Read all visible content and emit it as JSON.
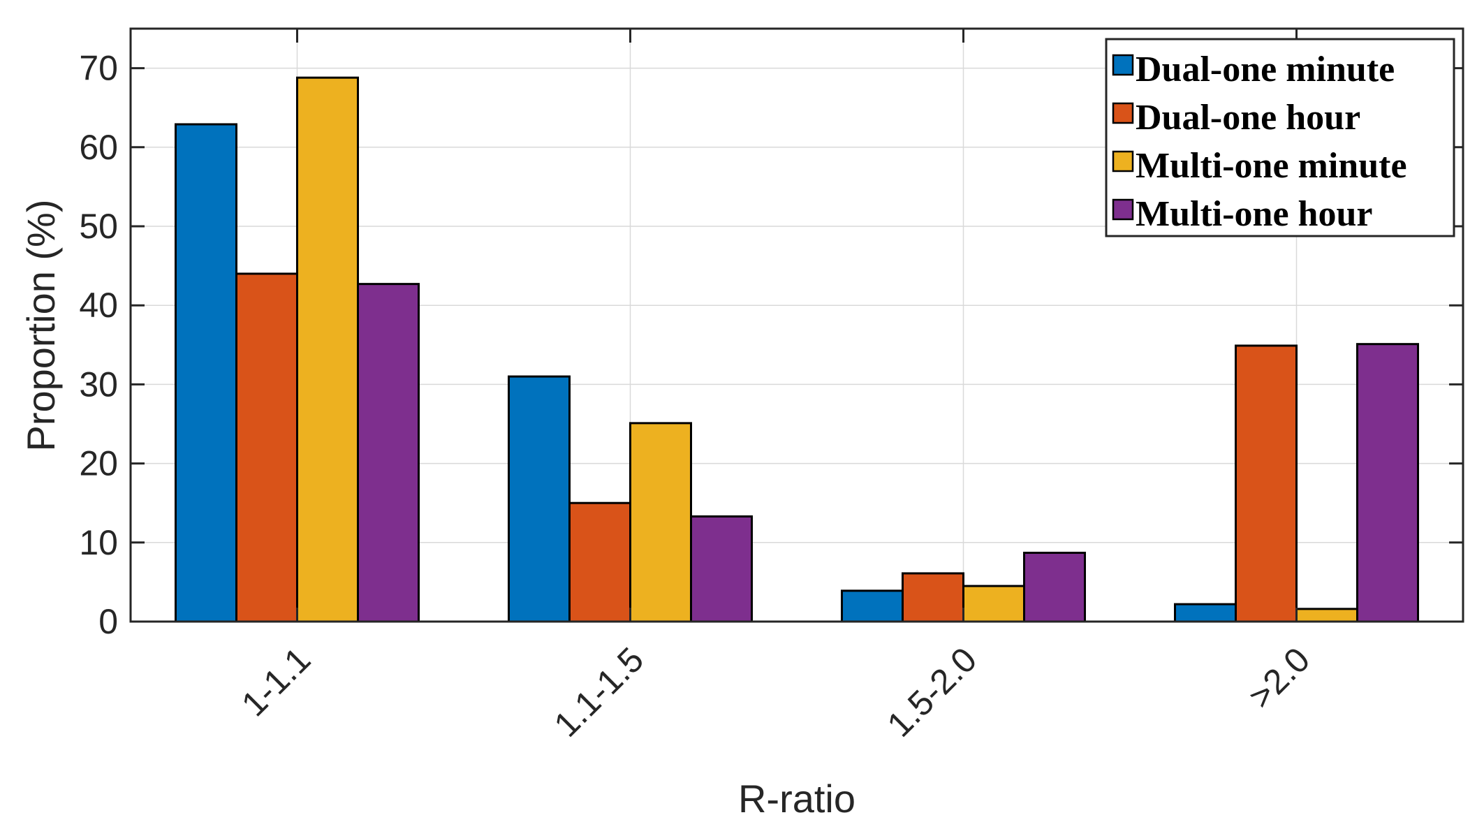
{
  "chart_data": {
    "type": "bar",
    "title": "",
    "xlabel": "R-ratio",
    "ylabel": "Proportion (%)",
    "categories": [
      "1-1.1",
      "1.1-1.5",
      "1.5-2.0",
      ">2.0"
    ],
    "ylim": [
      0,
      75
    ],
    "yticks": [
      0,
      10,
      20,
      30,
      40,
      50,
      60,
      70
    ],
    "grid": true,
    "legend_position": "top-right",
    "series": [
      {
        "name": "Dual-one minute",
        "color": "#0072BD",
        "values": [
          62.9,
          31.0,
          3.9,
          2.2
        ]
      },
      {
        "name": "Dual-one hour",
        "color": "#D95319",
        "values": [
          44.0,
          15.0,
          6.1,
          34.9
        ]
      },
      {
        "name": "Multi-one minute",
        "color": "#EDB120",
        "values": [
          68.8,
          25.1,
          4.5,
          1.6
        ]
      },
      {
        "name": "Multi-one hour",
        "color": "#7E2F8E",
        "values": [
          42.7,
          13.3,
          8.7,
          35.1
        ]
      }
    ]
  }
}
